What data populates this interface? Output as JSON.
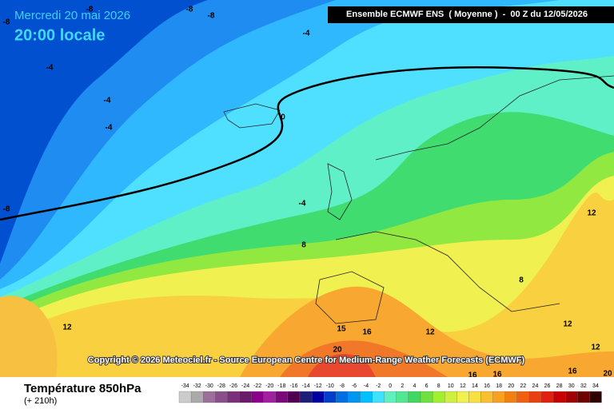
{
  "header": {
    "date": "Mercredi 20 mai 2026",
    "time": "20:00 locale",
    "run": "Ensemble ECMWF ENS  ( Moyenne )  -  00 Z du 12/05/2026"
  },
  "map": {
    "contour_labels": [
      -8,
      -8,
      -8,
      -8,
      -4,
      -4,
      -4,
      -4,
      0,
      -4,
      -8,
      8,
      12,
      8,
      12,
      15,
      16,
      12,
      12,
      12,
      20,
      16,
      16,
      16,
      20
    ]
  },
  "copyright": "Copyright © 2026 Meteociel.fr - Source European Centre for Medium-Range Weather Forecasts (ECMWF)",
  "footer": {
    "title": "Température 850hPa",
    "lead": "(+ 210h)"
  },
  "legend": {
    "values": [
      -34,
      -32,
      -30,
      -28,
      -26,
      -24,
      -22,
      -20,
      -18,
      -16,
      -14,
      -12,
      -10,
      -8,
      -6,
      -4,
      -2,
      0,
      2,
      4,
      6,
      8,
      10,
      12,
      14,
      16,
      18,
      20,
      22,
      24,
      26,
      28,
      30,
      32,
      34
    ],
    "colors": [
      "#cccccc",
      "#aaaaaa",
      "#9a6f9a",
      "#8a4f8a",
      "#7a307a",
      "#6a1a6a",
      "#8b008b",
      "#a020a0",
      "#7a0a7a",
      "#500050",
      "#1e1e78",
      "#0000a0",
      "#0040c8",
      "#0070e0",
      "#0096f0",
      "#00c0ff",
      "#40e0ff",
      "#60f0c0",
      "#50e890",
      "#40d860",
      "#70e040",
      "#a0f030",
      "#d0f040",
      "#f0f050",
      "#f8e040",
      "#f8c030",
      "#f8a020",
      "#f08010",
      "#f06010",
      "#e84010",
      "#e02010",
      "#c80000",
      "#a00000",
      "#700000",
      "#300000"
    ]
  }
}
